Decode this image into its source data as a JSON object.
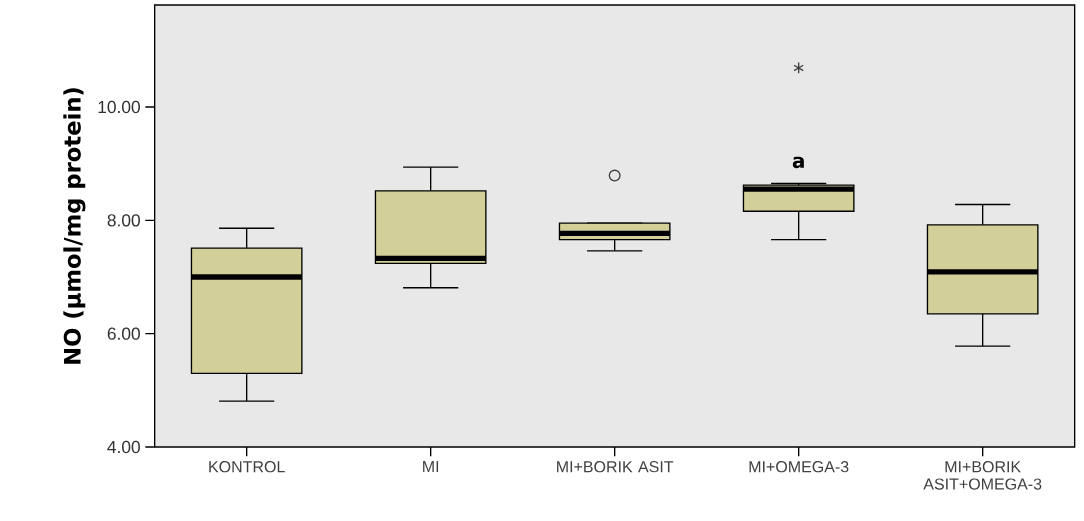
{
  "chart_data": {
    "type": "box",
    "ylabel": "NO (µmol/mg protein)",
    "categories": [
      "KONTROL",
      "MI",
      "MI+BORIK ASIT",
      "MI+OMEGA-3",
      "MI+BORIK ASIT+OMEGA-3"
    ],
    "color": "#d3cf98",
    "boxes": [
      {
        "low": 4.81,
        "q1": 5.3,
        "median": 7.0,
        "q3": 7.51,
        "high": 7.86
      },
      {
        "low": 6.81,
        "q1": 7.24,
        "median": 7.33,
        "q3": 8.52,
        "high": 8.94
      },
      {
        "low": 7.46,
        "q1": 7.66,
        "median": 7.77,
        "q3": 7.95,
        "high": 7.95,
        "outliers": [
          8.79
        ]
      },
      {
        "low": 7.66,
        "q1": 8.16,
        "median": 8.55,
        "q3": 8.62,
        "high": 8.65,
        "outliers": [
          10.69
        ]
      },
      {
        "low": 5.78,
        "q1": 6.35,
        "median": 7.09,
        "q3": 7.92,
        "high": 8.28
      }
    ],
    "ylim": [
      4,
      11.8
    ],
    "yticks": [
      {
        "value": 4,
        "label": "4.00"
      },
      {
        "value": 6,
        "label": "6.00"
      },
      {
        "value": 8,
        "label": "8.00"
      },
      {
        "value": 10,
        "label": "10.00"
      }
    ],
    "annotations": [
      "a"
    ]
  }
}
